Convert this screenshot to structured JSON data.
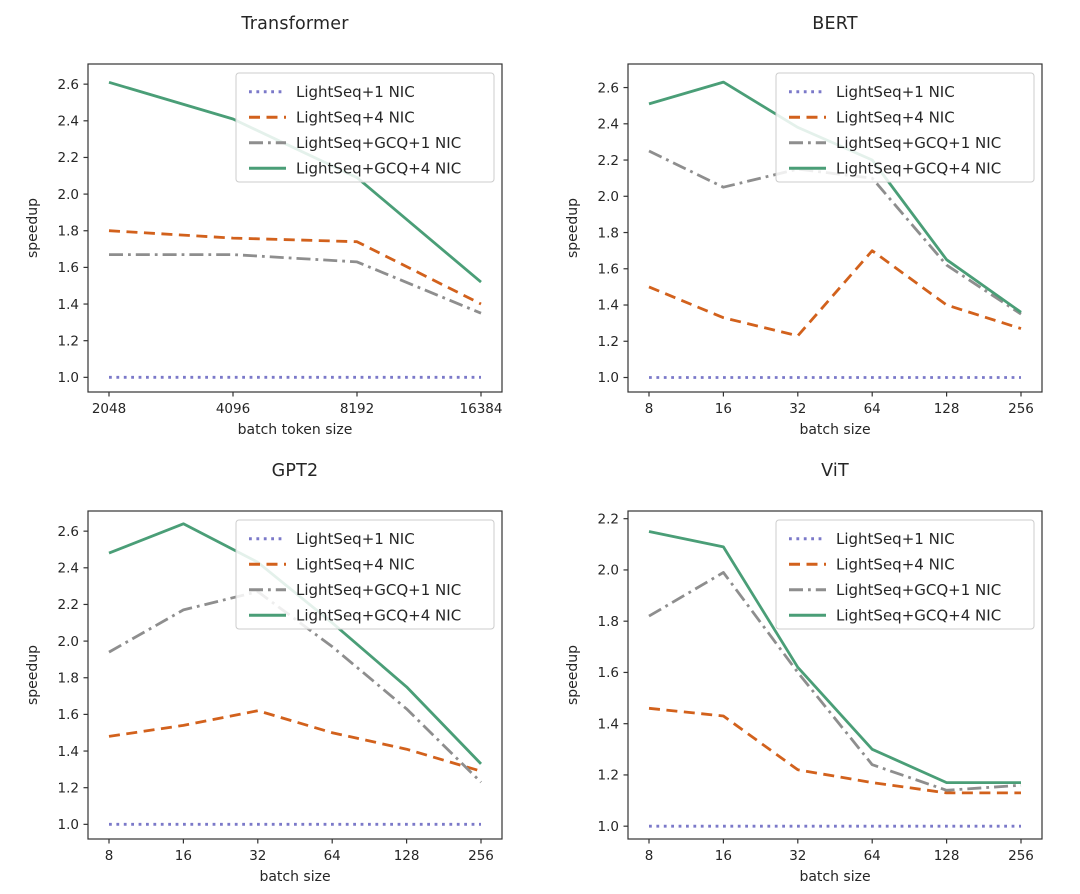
{
  "colors": {
    "series_purple": "#7b79c9",
    "series_orange": "#d2611c",
    "series_gray": "#8e8e8e",
    "series_green": "#4a9e77",
    "axis_text": "#262626",
    "axis_line": "#333333",
    "legend_border": "#cccccc",
    "legend_fill": "#ffffff"
  },
  "chart_data": [
    {
      "type": "line",
      "id": "transformer",
      "title": "Transformer",
      "xlabel": "batch token size",
      "ylabel": "speedup",
      "x_tick_labels": [
        "2048",
        "4096",
        "8192",
        "16384"
      ],
      "y_ticks": [
        1.0,
        1.2,
        1.4,
        1.6,
        1.8,
        2.0,
        2.2,
        2.4,
        2.6
      ],
      "ylim": [
        0.92,
        2.71
      ],
      "grid": false,
      "legend_position": "upper right",
      "series": [
        {
          "name": "LightSeq+1 NIC",
          "color": "series_purple",
          "line_style": "dotted",
          "values": [
            1.0,
            1.0,
            1.0,
            1.0
          ]
        },
        {
          "name": "LightSeq+4 NIC",
          "color": "series_orange",
          "line_style": "dashed",
          "values": [
            1.8,
            1.76,
            1.74,
            1.4
          ]
        },
        {
          "name": "LightSeq+GCQ+1 NIC",
          "color": "series_gray",
          "line_style": "dashdot",
          "values": [
            1.67,
            1.67,
            1.63,
            1.35
          ]
        },
        {
          "name": "LightSeq+GCQ+4 NIC",
          "color": "series_green",
          "line_style": "solid",
          "values": [
            2.61,
            2.41,
            2.09,
            1.52
          ]
        }
      ]
    },
    {
      "type": "line",
      "id": "bert",
      "title": "BERT",
      "xlabel": "batch size",
      "ylabel": "speedup",
      "x_tick_labels": [
        "8",
        "16",
        "32",
        "64",
        "128",
        "256"
      ],
      "y_ticks": [
        1.0,
        1.2,
        1.4,
        1.6,
        1.8,
        2.0,
        2.2,
        2.4,
        2.6
      ],
      "ylim": [
        0.92,
        2.73
      ],
      "grid": false,
      "legend_position": "upper right",
      "series": [
        {
          "name": "LightSeq+1 NIC",
          "color": "series_purple",
          "line_style": "dotted",
          "values": [
            1.0,
            1.0,
            1.0,
            1.0,
            1.0,
            1.0
          ]
        },
        {
          "name": "LightSeq+4 NIC",
          "color": "series_orange",
          "line_style": "dashed",
          "values": [
            1.5,
            1.33,
            1.23,
            1.7,
            1.4,
            1.27
          ]
        },
        {
          "name": "LightSeq+GCQ+1 NIC",
          "color": "series_gray",
          "line_style": "dashdot",
          "values": [
            2.25,
            2.05,
            2.15,
            2.1,
            1.62,
            1.35
          ]
        },
        {
          "name": "LightSeq+GCQ+4 NIC",
          "color": "series_green",
          "line_style": "solid",
          "values": [
            2.51,
            2.63,
            2.38,
            2.2,
            1.65,
            1.36
          ]
        }
      ]
    },
    {
      "type": "line",
      "id": "gpt2",
      "title": "GPT2",
      "xlabel": "batch size",
      "ylabel": "speedup",
      "x_tick_labels": [
        "8",
        "16",
        "32",
        "64",
        "128",
        "256"
      ],
      "y_ticks": [
        1.0,
        1.2,
        1.4,
        1.6,
        1.8,
        2.0,
        2.2,
        2.4,
        2.6
      ],
      "ylim": [
        0.92,
        2.71
      ],
      "grid": false,
      "legend_position": "upper right",
      "series": [
        {
          "name": "LightSeq+1 NIC",
          "color": "series_purple",
          "line_style": "dotted",
          "values": [
            1.0,
            1.0,
            1.0,
            1.0,
            1.0,
            1.0
          ]
        },
        {
          "name": "LightSeq+4 NIC",
          "color": "series_orange",
          "line_style": "dashed",
          "values": [
            1.48,
            1.54,
            1.62,
            1.5,
            1.41,
            1.29
          ]
        },
        {
          "name": "LightSeq+GCQ+1 NIC",
          "color": "series_gray",
          "line_style": "dashdot",
          "values": [
            1.94,
            2.17,
            2.27,
            1.97,
            1.63,
            1.23
          ]
        },
        {
          "name": "LightSeq+GCQ+4 NIC",
          "color": "series_green",
          "line_style": "solid",
          "values": [
            2.48,
            2.64,
            2.43,
            2.1,
            1.75,
            1.33
          ]
        }
      ]
    },
    {
      "type": "line",
      "id": "vit",
      "title": "ViT",
      "xlabel": "batch size",
      "ylabel": "speedup",
      "x_tick_labels": [
        "8",
        "16",
        "32",
        "64",
        "128",
        "256"
      ],
      "y_ticks": [
        1.0,
        1.2,
        1.4,
        1.6,
        1.8,
        2.0,
        2.2
      ],
      "ylim": [
        0.95,
        2.23
      ],
      "grid": false,
      "legend_position": "upper right",
      "series": [
        {
          "name": "LightSeq+1 NIC",
          "color": "series_purple",
          "line_style": "dotted",
          "values": [
            1.0,
            1.0,
            1.0,
            1.0,
            1.0,
            1.0
          ]
        },
        {
          "name": "LightSeq+4 NIC",
          "color": "series_orange",
          "line_style": "dashed",
          "values": [
            1.46,
            1.43,
            1.22,
            1.17,
            1.13,
            1.13
          ]
        },
        {
          "name": "LightSeq+GCQ+1 NIC",
          "color": "series_gray",
          "line_style": "dashdot",
          "values": [
            1.82,
            1.99,
            1.6,
            1.24,
            1.14,
            1.16
          ]
        },
        {
          "name": "LightSeq+GCQ+4 NIC",
          "color": "series_green",
          "line_style": "solid",
          "values": [
            2.15,
            2.09,
            1.62,
            1.3,
            1.17,
            1.17
          ]
        }
      ]
    }
  ]
}
